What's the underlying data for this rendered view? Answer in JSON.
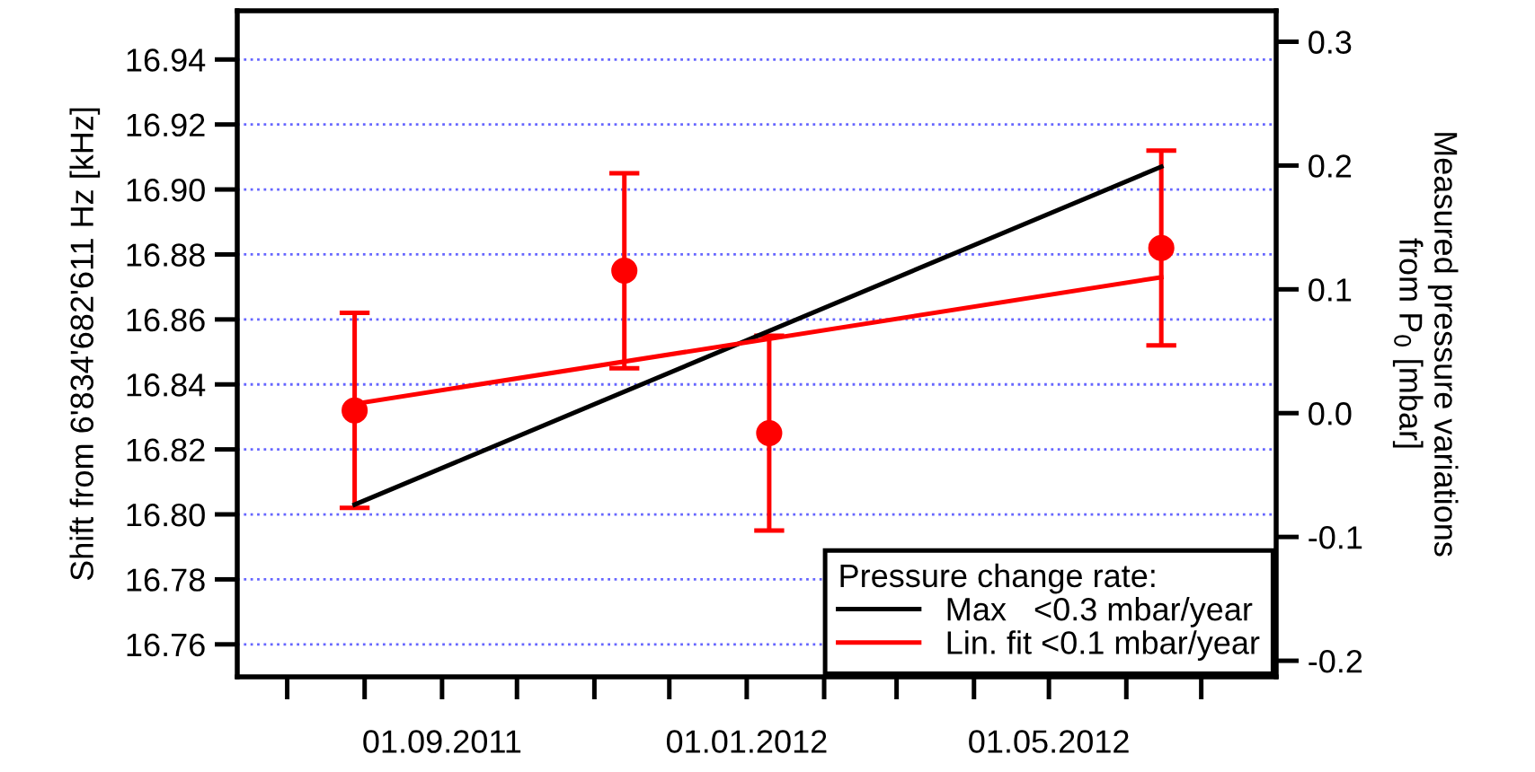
{
  "chart_data": {
    "type": "scatter",
    "ylabel": "Shift from 6'834'682'611 Hz [kHz]",
    "y2label": "Measured pressure variations\nfrom P$_{0}$ [mbar]",
    "legend_title": "Pressure change rate:",
    "x": [
      "2011-07-28",
      "2011-11-13",
      "2012-01-10",
      "2012-06-15"
    ],
    "series": [
      {
        "color": "#ff0000",
        "marker": "circle",
        "values": [
          16.832,
          16.875,
          16.825,
          16.882
        ],
        "errors": [
          0.03,
          0.03,
          0.03,
          0.03
        ]
      },
      {
        "type": "line",
        "name": "Max   <0.3 mbar/year",
        "color": "#000000",
        "marker": "none",
        "x": [
          "2011-07-28",
          "2012-06-15"
        ],
        "values": [
          16.803,
          16.907
        ]
      },
      {
        "type": "line",
        "name": "Lin. fit <0.1 mbar/year",
        "color": "#ff0000",
        "marker": "none",
        "x": [
          "2011-07-28",
          "2012-06-15"
        ],
        "values": [
          16.834,
          16.873
        ]
      }
    ],
    "xlim": [
      "2011-06-11",
      "2012-07-31"
    ],
    "xticks": [
      {
        "value": "2011-07-01",
        "label": null
      },
      {
        "value": "2011-08-01",
        "label": null
      },
      {
        "value": "2011-09-01",
        "label": "01.09.2011"
      },
      {
        "value": "2011-10-01",
        "label": null
      },
      {
        "value": "2011-11-01",
        "label": null
      },
      {
        "value": "2011-12-01",
        "label": null
      },
      {
        "value": "2012-01-01",
        "label": "01.01.2012"
      },
      {
        "value": "2012-02-01",
        "label": null
      },
      {
        "value": "2012-03-01",
        "label": null
      },
      {
        "value": "2012-04-01",
        "label": null
      },
      {
        "value": "2012-05-01",
        "label": "01.05.2012"
      },
      {
        "value": "2012-06-01",
        "label": null
      },
      {
        "value": "2012-07-01",
        "label": null
      }
    ],
    "ylim": [
      16.75,
      16.955
    ],
    "yticks": [
      {
        "value": 16.76,
        "label": "16.76"
      },
      {
        "value": 16.78,
        "label": "16.78"
      },
      {
        "value": 16.8,
        "label": "16.80"
      },
      {
        "value": 16.82,
        "label": "16.82"
      },
      {
        "value": 16.84,
        "label": "16.84"
      },
      {
        "value": 16.86,
        "label": "16.86"
      },
      {
        "value": 16.88,
        "label": "16.88"
      },
      {
        "value": 16.9,
        "label": "16.90"
      },
      {
        "value": 16.92,
        "label": "16.92"
      },
      {
        "value": 16.94,
        "label": "16.94"
      }
    ],
    "y2lim": [
      -0.213,
      0.325
    ],
    "y2ticks": [
      {
        "value": -0.2,
        "label": "-0.2"
      },
      {
        "value": -0.1,
        "label": "-0.1"
      },
      {
        "value": 0.0,
        "label": "0.0"
      },
      {
        "value": 0.1,
        "label": "0.1"
      },
      {
        "value": 0.2,
        "label": "0.2"
      },
      {
        "value": 0.3,
        "label": "0.3"
      }
    ],
    "grid": "y",
    "legend": "bottom right"
  }
}
